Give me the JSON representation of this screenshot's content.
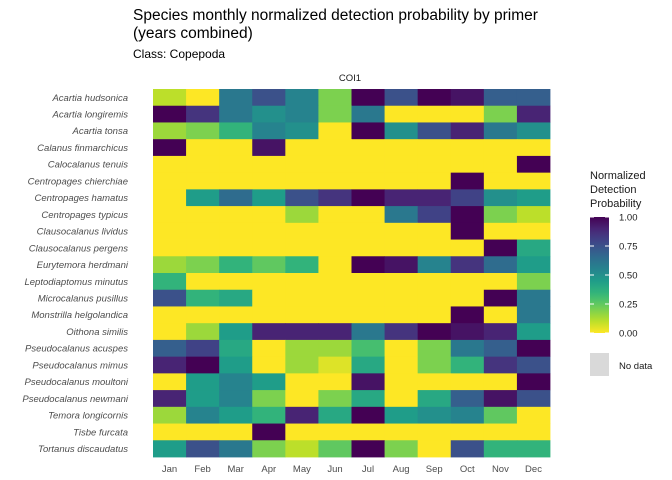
{
  "chart_data": {
    "type": "heatmap",
    "title_lines": [
      "Species monthly normalized detection probability by primer",
      "(years combined)"
    ],
    "subtitle": "Class: Copepoda",
    "facet": "COI1",
    "xlabel": "",
    "ylabel": "",
    "x_categories": [
      "Jan",
      "Feb",
      "Mar",
      "Apr",
      "May",
      "Jun",
      "Jul",
      "Aug",
      "Sep",
      "Oct",
      "Nov",
      "Dec"
    ],
    "y_categories": [
      "Acartia hudsonica",
      "Acartia longiremis",
      "Acartia tonsa",
      "Calanus finmarchicus",
      "Calocalanus tenuis",
      "Centropages chierchiae",
      "Centropages hamatus",
      "Centropages typicus",
      "Clausocalanus lividus",
      "Clausocalanus pergens",
      "Eurytemora herdmani",
      "Leptodiaptomus minutus",
      "Microcalanus pusillus",
      "Monstrilla helgolandica",
      "Oithona similis",
      "Pseudocalanus acuspes",
      "Pseudocalanus mimus",
      "Pseudocalanus moultoni",
      "Pseudocalanus newmani",
      "Temora longicornis",
      "Tisbe furcata",
      "Tortanus discaudatus"
    ],
    "values": [
      [
        0.1,
        0.0,
        0.6,
        0.75,
        0.55,
        0.2,
        1.0,
        0.75,
        1.0,
        0.95,
        0.7,
        0.7
      ],
      [
        1.0,
        0.85,
        0.6,
        0.5,
        0.55,
        0.2,
        0.6,
        0.0,
        0.0,
        0.0,
        0.2,
        0.9
      ],
      [
        0.15,
        0.2,
        0.35,
        0.55,
        0.5,
        0.0,
        1.0,
        0.5,
        0.75,
        0.9,
        0.6,
        0.5
      ],
      [
        1.0,
        0.0,
        0.0,
        0.95,
        0.0,
        0.0,
        0.0,
        0.0,
        0.0,
        0.0,
        0.0,
        0.0
      ],
      [
        0.0,
        0.0,
        0.0,
        0.0,
        0.0,
        0.0,
        0.0,
        0.0,
        0.0,
        0.0,
        0.0,
        1.0
      ],
      [
        0.0,
        0.0,
        0.0,
        0.0,
        0.0,
        0.0,
        0.0,
        0.0,
        0.0,
        1.0,
        0.0,
        0.0
      ],
      [
        0.0,
        0.45,
        0.65,
        0.45,
        0.75,
        0.85,
        1.0,
        0.9,
        0.9,
        0.8,
        0.5,
        0.45
      ],
      [
        0.0,
        0.0,
        0.0,
        0.0,
        0.15,
        0.0,
        0.0,
        0.6,
        0.8,
        1.0,
        0.2,
        0.1
      ],
      [
        0.0,
        0.0,
        0.0,
        0.0,
        0.0,
        0.0,
        0.0,
        0.0,
        0.0,
        1.0,
        0.0,
        0.0
      ],
      [
        0.0,
        0.0,
        0.0,
        0.0,
        0.0,
        0.0,
        0.0,
        0.0,
        0.0,
        0.0,
        1.0,
        0.4
      ],
      [
        0.15,
        0.2,
        0.35,
        0.25,
        0.35,
        0.0,
        1.0,
        0.95,
        0.55,
        0.85,
        0.65,
        0.45
      ],
      [
        0.35,
        0.0,
        0.0,
        0.0,
        0.0,
        0.0,
        0.0,
        0.0,
        0.0,
        0.0,
        0.0,
        0.2
      ],
      [
        0.75,
        0.35,
        0.4,
        0.0,
        0.0,
        0.0,
        0.0,
        0.0,
        0.0,
        0.0,
        1.0,
        0.6
      ],
      [
        0.0,
        0.0,
        0.0,
        0.0,
        0.0,
        0.0,
        0.0,
        0.0,
        0.0,
        1.0,
        0.0,
        0.6
      ],
      [
        0.0,
        0.15,
        0.45,
        0.9,
        0.9,
        0.9,
        0.6,
        0.85,
        1.0,
        0.95,
        0.9,
        0.45
      ],
      [
        0.7,
        0.8,
        0.4,
        0.0,
        0.15,
        0.15,
        0.3,
        0.0,
        0.2,
        0.6,
        0.7,
        1.0
      ],
      [
        0.9,
        1.0,
        0.45,
        0.0,
        0.15,
        0.05,
        0.4,
        0.0,
        0.2,
        0.35,
        0.85,
        0.75
      ],
      [
        0.0,
        0.45,
        0.55,
        0.45,
        0.0,
        0.0,
        0.95,
        0.0,
        0.0,
        0.0,
        0.0,
        1.0
      ],
      [
        0.9,
        0.45,
        0.55,
        0.2,
        0.0,
        0.2,
        0.4,
        0.0,
        0.4,
        0.7,
        0.95,
        0.75
      ],
      [
        0.15,
        0.55,
        0.45,
        0.35,
        0.9,
        0.4,
        1.0,
        0.45,
        0.5,
        0.55,
        0.25,
        0.0
      ],
      [
        0.0,
        0.0,
        0.0,
        1.0,
        0.0,
        0.0,
        0.0,
        0.0,
        0.0,
        0.0,
        0.0,
        0.0
      ],
      [
        0.45,
        0.75,
        0.6,
        0.2,
        0.1,
        0.25,
        1.0,
        0.2,
        0.0,
        0.75,
        0.35,
        0.35
      ]
    ],
    "colorscale": "viridis (reversed)",
    "zlim": [
      0,
      1
    ],
    "legend": {
      "title_lines": [
        "Normalized",
        "Detection",
        "Probability"
      ],
      "ticks": [
        "1.00",
        "0.75",
        "0.50",
        "0.25",
        "0.00"
      ],
      "tick_values": [
        1.0,
        0.75,
        0.5,
        0.25,
        0.0
      ],
      "na_label": "No data",
      "na_color": "#d9d9d9",
      "position": "right"
    },
    "grid": false
  }
}
